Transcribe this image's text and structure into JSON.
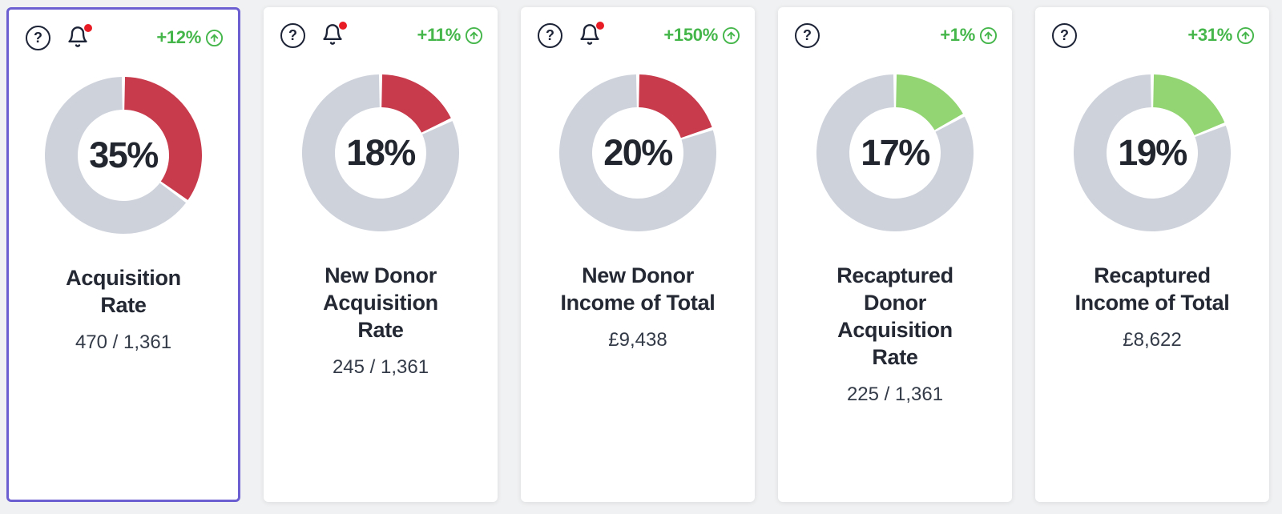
{
  "page": {
    "background": "#F0F1F2"
  },
  "colors": {
    "page_bg": "#F0F1F2",
    "card_bg": "#FFFFFF",
    "navy": "#1D2336",
    "title_text": "#232833",
    "value_text": "#343B48",
    "percent_text": "#22262E",
    "red_arc": "#C83B4D",
    "green_arc": "#92D572",
    "track": "#CED2DB",
    "change_green": "#44B64A",
    "dot_red": "#E81C25",
    "selected_border": "#6B5FD1"
  },
  "icons": {
    "help_glyph": "?"
  },
  "cards": [
    {
      "id": "acquisition-rate",
      "selected": true,
      "help": true,
      "bell": true,
      "bell_dot": true,
      "change": "+12%",
      "change_direction": "up",
      "percent": 35,
      "percent_label": "35%",
      "arc": "red_arc",
      "title": "Acquisition Rate",
      "value": "470 / 1,361"
    },
    {
      "id": "new-donor-acquisition-rate",
      "selected": false,
      "help": true,
      "bell": true,
      "bell_dot": true,
      "change": "+11%",
      "change_direction": "up",
      "percent": 18,
      "percent_label": "18%",
      "arc": "red_arc",
      "title": "New Donor Acquisition Rate",
      "value": "245 / 1,361"
    },
    {
      "id": "new-donor-income-of-total",
      "selected": false,
      "help": true,
      "bell": true,
      "bell_dot": true,
      "change": "+150%",
      "change_direction": "up",
      "percent": 20,
      "percent_label": "20%",
      "arc": "red_arc",
      "title": "New Donor Income of Total",
      "value": "£9,438"
    },
    {
      "id": "recaptured-donor-acquisition-rate",
      "selected": false,
      "help": true,
      "bell": false,
      "bell_dot": false,
      "change": "+1%",
      "change_direction": "up",
      "percent": 17,
      "percent_label": "17%",
      "arc": "green_arc",
      "title": "Recaptured Donor Acquisition Rate",
      "value": "225 / 1,361"
    },
    {
      "id": "recaptured-income-of-total",
      "selected": false,
      "help": true,
      "bell": false,
      "bell_dot": false,
      "change": "+31%",
      "change_direction": "up",
      "percent": 19,
      "percent_label": "19%",
      "arc": "green_arc",
      "title": "Recaptured Income of Total",
      "value": "£8,622"
    }
  ],
  "chart_data": [
    {
      "type": "pie",
      "title": "Acquisition Rate",
      "center_label": "35%",
      "values": [
        35,
        65
      ],
      "labels": [
        "Acquisition Rate",
        "Remainder"
      ],
      "colors": [
        "#C83B4D",
        "#CED2DB"
      ],
      "annotation": "470 / 1,361",
      "change": "+12%"
    },
    {
      "type": "pie",
      "title": "New Donor Acquisition Rate",
      "center_label": "18%",
      "values": [
        18,
        82
      ],
      "labels": [
        "New Donor Acquisition Rate",
        "Remainder"
      ],
      "colors": [
        "#C83B4D",
        "#CED2DB"
      ],
      "annotation": "245 / 1,361",
      "change": "+11%"
    },
    {
      "type": "pie",
      "title": "New Donor Income of Total",
      "center_label": "20%",
      "values": [
        20,
        80
      ],
      "labels": [
        "New Donor Income of Total",
        "Remainder"
      ],
      "colors": [
        "#C83B4D",
        "#CED2DB"
      ],
      "annotation": "£9,438",
      "change": "+150%"
    },
    {
      "type": "pie",
      "title": "Recaptured Donor Acquisition Rate",
      "center_label": "17%",
      "values": [
        17,
        83
      ],
      "labels": [
        "Recaptured Donor Acquisition Rate",
        "Remainder"
      ],
      "colors": [
        "#92D572",
        "#CED2DB"
      ],
      "annotation": "225 / 1,361",
      "change": "+1%"
    },
    {
      "type": "pie",
      "title": "Recaptured Income of Total",
      "center_label": "19%",
      "values": [
        19,
        81
      ],
      "labels": [
        "Recaptured Income of Total",
        "Remainder"
      ],
      "colors": [
        "#92D572",
        "#CED2DB"
      ],
      "annotation": "£8,622",
      "change": "+31%"
    }
  ]
}
